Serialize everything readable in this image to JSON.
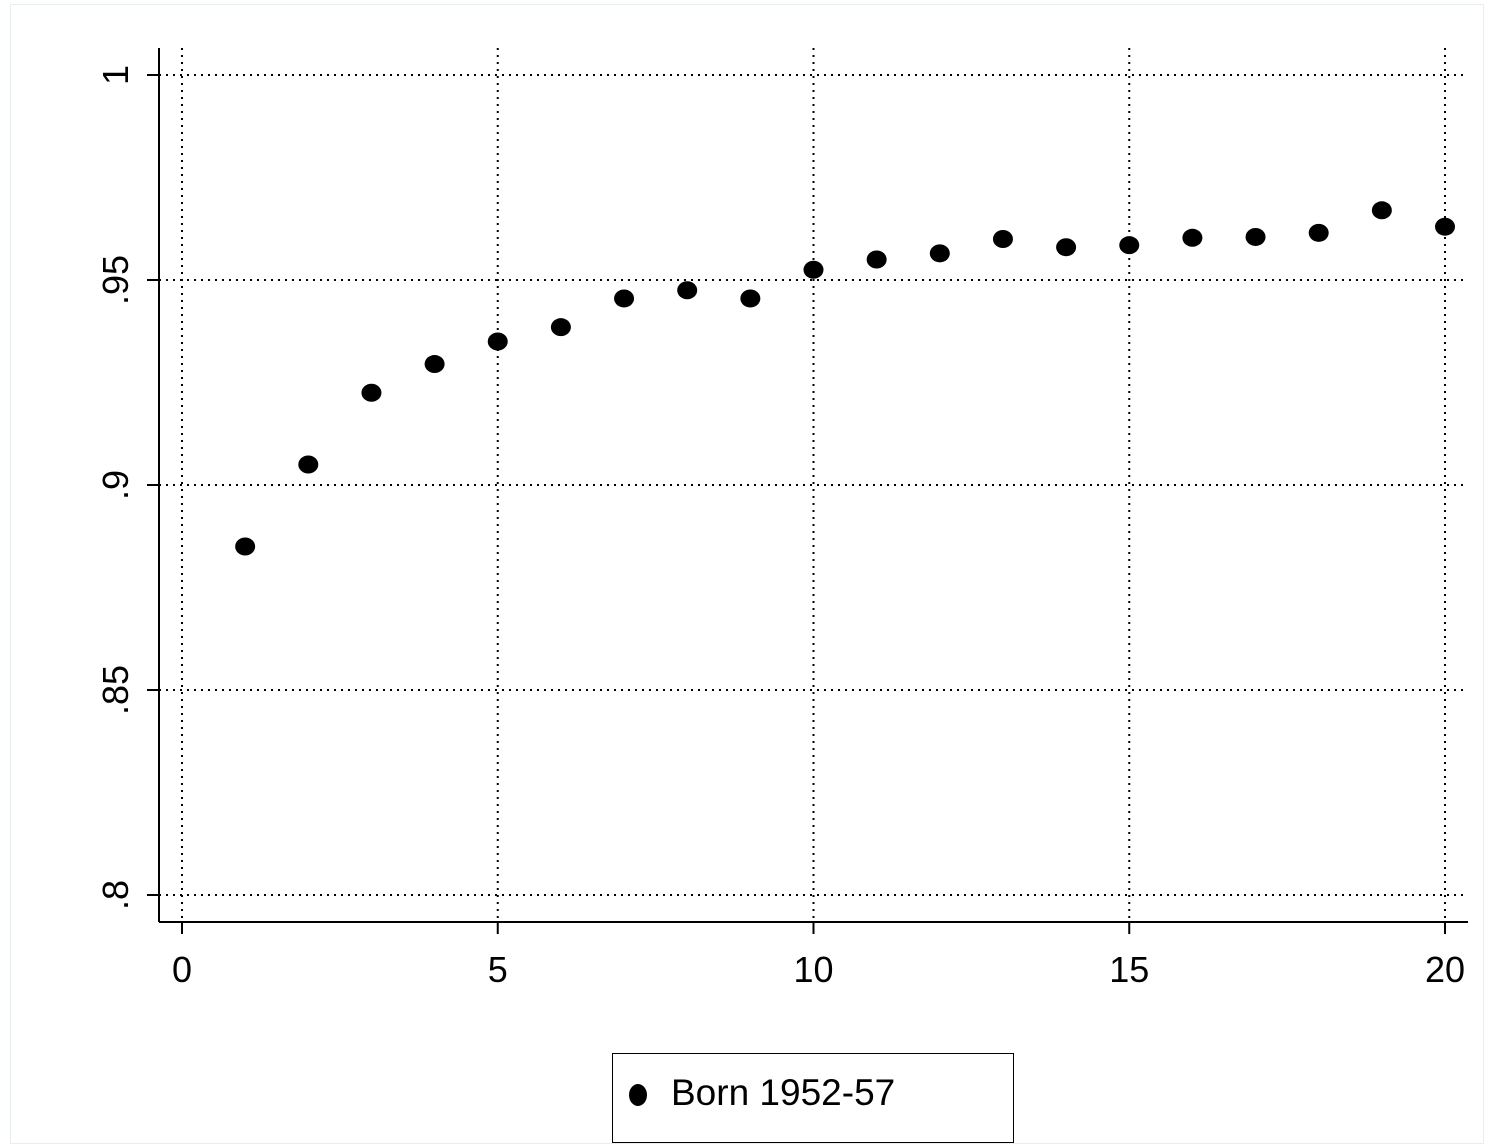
{
  "chart_data": {
    "type": "scatter",
    "title": "",
    "xlabel": "",
    "ylabel": "",
    "xlim": [
      0,
      20
    ],
    "ylim": [
      0.8,
      1
    ],
    "x_ticks": [
      0,
      5,
      10,
      15,
      20
    ],
    "x_tick_labels": [
      "0",
      "5",
      "10",
      "15",
      "20"
    ],
    "y_ticks": [
      0.8,
      0.85,
      0.9,
      0.95,
      1
    ],
    "y_tick_labels": [
      ".8",
      ".85",
      ".9",
      ".95",
      "1"
    ],
    "grid": true,
    "legend_position": "bottom-center",
    "series": [
      {
        "name": "Born 1952-57",
        "color": "#000000",
        "marker": "filled-circle",
        "x": [
          1,
          2,
          3,
          4,
          5,
          6,
          7,
          8,
          9,
          10,
          11,
          12,
          13,
          14,
          15,
          16,
          17,
          18,
          19,
          20
        ],
        "y": [
          0.885,
          0.905,
          0.9225,
          0.9295,
          0.935,
          0.9385,
          0.9455,
          0.9475,
          0.9455,
          0.9525,
          0.955,
          0.9565,
          0.96,
          0.958,
          0.9585,
          0.9603,
          0.9605,
          0.9615,
          0.967,
          0.963
        ]
      }
    ]
  }
}
